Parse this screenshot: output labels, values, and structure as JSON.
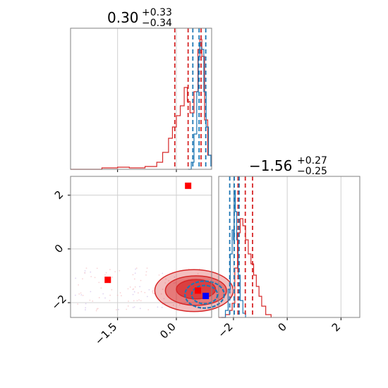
{
  "chart_data": {
    "type": "corner",
    "colors": {
      "red": "#d62728",
      "blue": "#1f77b4",
      "grid": "#d0d0d0",
      "frame": "#808080",
      "marker_red": "#ff0000",
      "marker_blue": "#0000ff"
    },
    "titles": [
      {
        "median": "0.30",
        "plus": "+0.33",
        "minus": "−0.34"
      },
      {
        "median": "−1.56",
        "plus": "+0.27",
        "minus": "−0.25"
      }
    ],
    "param1": {
      "range": [
        -2.7,
        0.9
      ],
      "ticks": [
        -1.5,
        0.0
      ],
      "tick_labels": [
        "−1.5",
        "0.0"
      ]
    },
    "param2": {
      "range": [
        -2.55,
        2.7
      ],
      "ticks": [
        -2,
        0,
        2
      ],
      "tick_labels": [
        "−2",
        "0",
        "2"
      ]
    },
    "hist1": {
      "red_quantiles": [
        -0.04,
        0.3,
        0.63
      ],
      "blue_quantiles": [
        0.42,
        0.58,
        0.75
      ],
      "red": [
        [
          -2.7,
          0
        ],
        [
          -1.9,
          0.01
        ],
        [
          -1.5,
          0.015
        ],
        [
          -1.2,
          0.01
        ],
        [
          -0.8,
          0.02
        ],
        [
          -0.5,
          0.05
        ],
        [
          -0.35,
          0.12
        ],
        [
          -0.2,
          0.22
        ],
        [
          -0.1,
          0.3
        ],
        [
          0.0,
          0.38
        ],
        [
          0.1,
          0.45
        ],
        [
          0.2,
          0.58
        ],
        [
          0.28,
          0.48
        ],
        [
          0.35,
          0.4
        ],
        [
          0.45,
          0.55
        ],
        [
          0.55,
          0.85
        ],
        [
          0.6,
          0.92
        ],
        [
          0.65,
          0.8
        ],
        [
          0.72,
          0.35
        ],
        [
          0.8,
          0.1
        ],
        [
          0.9,
          0.02
        ]
      ],
      "blue": [
        [
          0.3,
          0
        ],
        [
          0.38,
          0.05
        ],
        [
          0.45,
          0.25
        ],
        [
          0.52,
          0.55
        ],
        [
          0.56,
          0.8
        ],
        [
          0.6,
          0.9
        ],
        [
          0.64,
          0.85
        ],
        [
          0.7,
          0.55
        ],
        [
          0.76,
          0.3
        ],
        [
          0.82,
          0.1
        ],
        [
          0.88,
          0.02
        ]
      ]
    },
    "hist2": {
      "red_quantiles": [
        -1.83,
        -1.56,
        -1.29
      ],
      "blue_quantiles": [
        -2.14,
        -1.97,
        -1.79
      ],
      "red": [
        [
          -2.55,
          0
        ],
        [
          -2.3,
          0.02
        ],
        [
          -2.15,
          0.05
        ],
        [
          -2.05,
          0.1
        ],
        [
          -1.95,
          0.35
        ],
        [
          -1.85,
          0.6
        ],
        [
          -1.75,
          0.7
        ],
        [
          -1.65,
          0.65
        ],
        [
          -1.55,
          0.55
        ],
        [
          -1.45,
          0.45
        ],
        [
          -1.35,
          0.38
        ],
        [
          -1.25,
          0.3
        ],
        [
          -1.15,
          0.22
        ],
        [
          -1.05,
          0.15
        ],
        [
          -0.95,
          0.08
        ],
        [
          -0.8,
          0.02
        ],
        [
          -0.6,
          0
        ]
      ],
      "blue": [
        [
          -2.45,
          0
        ],
        [
          -2.3,
          0.05
        ],
        [
          -2.2,
          0.2
        ],
        [
          -2.12,
          0.45
        ],
        [
          -2.05,
          0.62
        ],
        [
          -2.0,
          0.55
        ],
        [
          -1.97,
          0.9
        ],
        [
          -1.93,
          0.75
        ],
        [
          -1.88,
          0.55
        ],
        [
          -1.82,
          0.3
        ],
        [
          -1.75,
          0.12
        ],
        [
          -1.65,
          0.03
        ],
        [
          -1.55,
          0
        ]
      ]
    },
    "scatter2d": {
      "red_markers": [
        [
          0.3,
          2.35
        ],
        [
          -1.75,
          -1.15
        ],
        [
          0.55,
          -1.55
        ]
      ],
      "blue_marker": [
        0.75,
        -1.75
      ],
      "red_contours": [
        {
          "cx": 0.45,
          "cy": -1.55,
          "rx": 1.0,
          "ry": 0.78,
          "opacity": 0.3
        },
        {
          "cx": 0.5,
          "cy": -1.55,
          "rx": 0.78,
          "ry": 0.55,
          "opacity": 0.45
        },
        {
          "cx": 0.5,
          "cy": -1.5,
          "rx": 0.5,
          "ry": 0.36,
          "opacity": 0.7
        }
      ],
      "blue_contours": [
        {
          "cx": 0.72,
          "cy": -1.7,
          "rx": 0.5,
          "ry": 0.5
        },
        {
          "cx": 0.72,
          "cy": -1.7,
          "rx": 0.33,
          "ry": 0.34
        }
      ]
    }
  }
}
